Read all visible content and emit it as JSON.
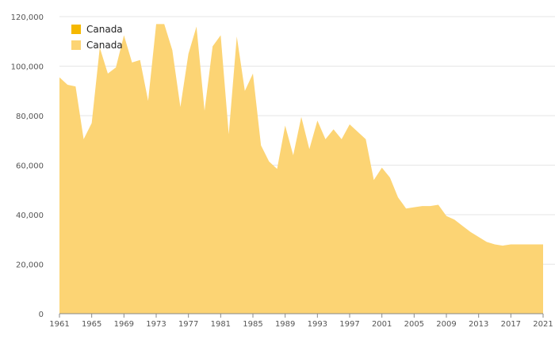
{
  "chart_data": {
    "type": "area",
    "title": "",
    "xlabel": "",
    "ylabel": "",
    "xlim": [
      1961,
      2021
    ],
    "ylim": [
      0,
      120000
    ],
    "grid": true,
    "legend_placement": "top-left",
    "x_ticks": [
      "1961",
      "1965",
      "1969",
      "1973",
      "1977",
      "1981",
      "1985",
      "1989",
      "1993",
      "1997",
      "2001",
      "2005",
      "2009",
      "2013",
      "2017",
      "2021"
    ],
    "y_ticks": [
      "0",
      "20,000",
      "40,000",
      "60,000",
      "80,000",
      "100,000",
      "120,000"
    ],
    "legend": [
      {
        "label": "Canada",
        "color": "#f5b800"
      },
      {
        "label": "Canada",
        "color": "#fcd474"
      }
    ],
    "series": [
      {
        "name": "Canada",
        "color": "#fcd474",
        "x": [
          1961,
          1962,
          1963,
          1964,
          1965,
          1966,
          1967,
          1968,
          1969,
          1970,
          1971,
          1972,
          1973,
          1974,
          1975,
          1976,
          1977,
          1978,
          1979,
          1980,
          1981,
          1982,
          1983,
          1984,
          1985,
          1986,
          1987,
          1988,
          1989,
          1990,
          1991,
          1992,
          1993,
          1994,
          1995,
          1996,
          1997,
          1998,
          1999,
          2000,
          2001,
          2002,
          2003,
          2004,
          2005,
          2006,
          2007,
          2008,
          2009,
          2010,
          2011,
          2012,
          2013,
          2014,
          2015,
          2016,
          2017,
          2018,
          2019,
          2020,
          2021
        ],
        "values": [
          95500,
          92500,
          91800,
          70500,
          77000,
          107500,
          97000,
          99500,
          112500,
          101500,
          102500,
          86000,
          117000,
          117000,
          106500,
          83500,
          105000,
          116000,
          82000,
          108000,
          112500,
          72500,
          112000,
          90000,
          97000,
          68000,
          61500,
          58500,
          76000,
          64000,
          79500,
          66500,
          78000,
          70500,
          74500,
          70500,
          76500,
          73500,
          70500,
          54000,
          59000,
          55000,
          47000,
          42500,
          43000,
          43500,
          43500,
          44000,
          39500,
          38000,
          35500,
          33000,
          31000,
          29000,
          28000,
          27500,
          28000,
          28000,
          28000,
          28000,
          28000
        ]
      }
    ]
  }
}
